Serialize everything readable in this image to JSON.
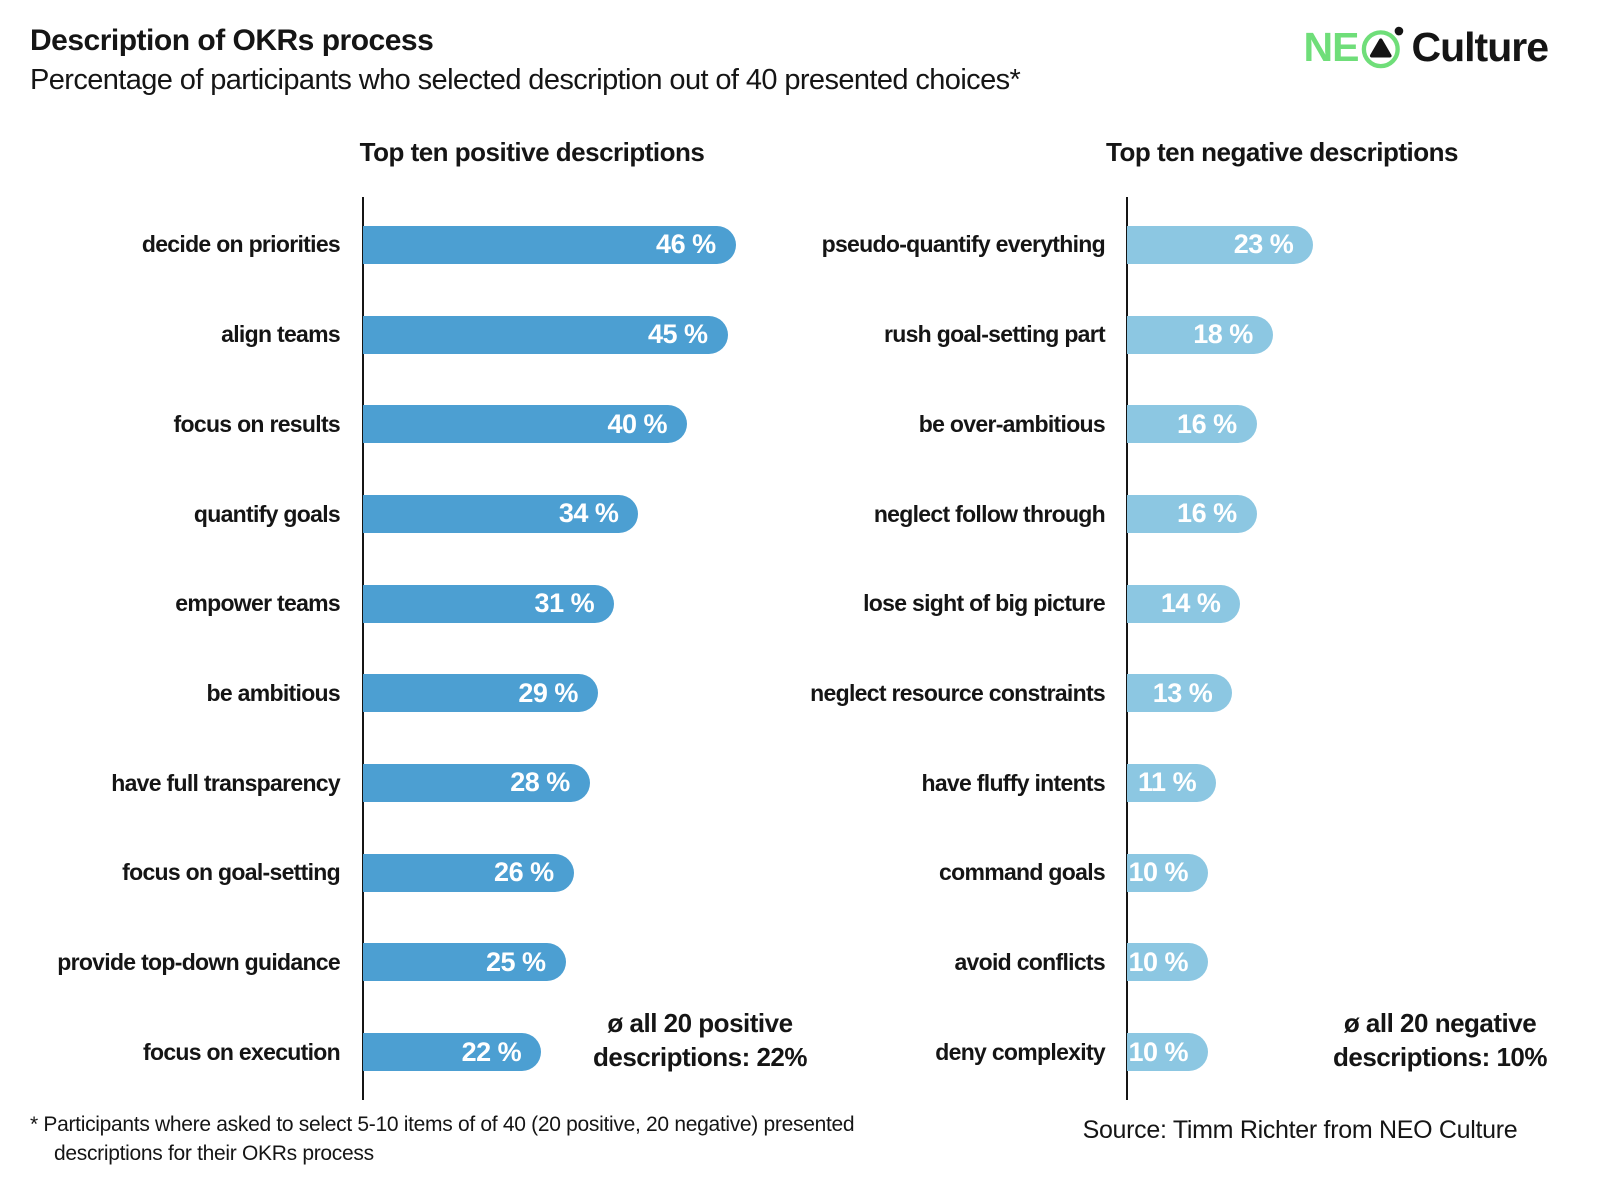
{
  "header": {
    "title": "Description of OKRs process",
    "subtitle": "Percentage of participants who selected description out of 40 presented choices*",
    "logo": {
      "ne": "NE",
      "culture": "Culture",
      "green": "#6FDE79",
      "mark": "circle-triangle-dot"
    }
  },
  "chart_data": [
    {
      "type": "bar",
      "orientation": "horizontal",
      "title": "Top ten positive descriptions",
      "categories": [
        "decide on priorities",
        "align teams",
        "focus on results",
        "quantify goals",
        "empower teams",
        "be ambitious",
        "have full transparency",
        "focus on goal-setting",
        "provide top-down guidance",
        "focus on execution"
      ],
      "values": [
        46,
        45,
        40,
        34,
        31,
        29,
        28,
        26,
        25,
        22
      ],
      "unit": "%",
      "bar_color": "#4C9FD2",
      "value_label_color": "#ffffff",
      "annotation": "ø all 20 positive descriptions: 22%",
      "xlim": [
        0,
        50
      ],
      "grid": "off",
      "legend": "none"
    },
    {
      "type": "bar",
      "orientation": "horizontal",
      "title": "Top ten negative descriptions",
      "categories": [
        "pseudo-quantify everything",
        "rush goal-setting part",
        "be over-ambitious",
        "neglect follow through",
        "lose sight of big picture",
        "neglect resource constraints",
        "have fluffy intents",
        "command goals",
        "avoid conflicts",
        "deny complexity"
      ],
      "values": [
        23,
        18,
        16,
        16,
        14,
        13,
        11,
        10,
        10,
        10
      ],
      "unit": "%",
      "bar_color": "#8CC7E2",
      "value_label_color": "#ffffff",
      "annotation": "ø all 20 negative descriptions: 10%",
      "xlim": [
        0,
        50
      ],
      "grid": "off",
      "legend": "none"
    }
  ],
  "footer": {
    "footnote_lines": [
      "* Participants where asked to select 5-10 items of of 40 (20 positive, 20 negative) presented",
      "descriptions for their OKRs process"
    ],
    "source": "Source: Timm Richter from NEO Culture"
  }
}
